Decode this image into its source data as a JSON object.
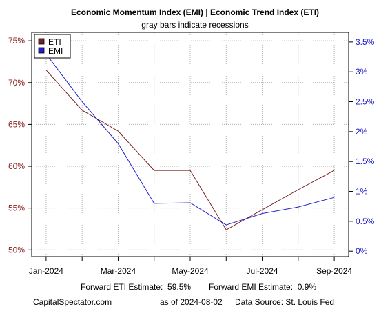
{
  "chart_data": {
    "type": "line",
    "title": "Economic Momentum Index (EMI) | Economic Trend Index (ETI)",
    "subtitle": "gray bars indicate recessions",
    "x": [
      "2024-01",
      "2024-02",
      "2024-03",
      "2024-04",
      "2024-05",
      "2024-06",
      "2024-07",
      "2024-08",
      "2024-09"
    ],
    "x_tick_labels": [
      "Jan-2024",
      "Mar-2024",
      "May-2024",
      "Jul-2024",
      "Sep-2024"
    ],
    "x_tick_index": [
      0,
      2,
      4,
      6,
      8
    ],
    "xlim_index": [
      -0.4,
      8.4
    ],
    "left_axis": {
      "ticks": [
        50,
        55,
        60,
        65,
        70,
        75
      ],
      "labels": [
        "50%",
        "55%",
        "60%",
        "65%",
        "70%",
        "75%"
      ],
      "ylim": [
        49.2,
        76
      ],
      "color": "#8b2020"
    },
    "right_axis": {
      "ticks": [
        0,
        0.5,
        1,
        1.5,
        2,
        2.5,
        3,
        3.5
      ],
      "labels": [
        "0%",
        "0.5%",
        "1%",
        "1.5%",
        "2%",
        "2.5%",
        "3%",
        "3.5%"
      ],
      "ylim": [
        -0.09,
        3.66
      ],
      "color": "#1a1acc"
    },
    "series": [
      {
        "name": "ETI",
        "axis": "left",
        "color": "#7a1e1e",
        "values": [
          71.5,
          66.7,
          64.2,
          59.5,
          59.5,
          52.4,
          54.8,
          57.2,
          59.5
        ]
      },
      {
        "name": "EMI",
        "axis": "right",
        "color": "#2020cc",
        "values": [
          3.3,
          2.5,
          1.8,
          0.8,
          0.81,
          0.44,
          0.63,
          0.74,
          0.9
        ]
      }
    ],
    "legend": {
      "placement": "top-left"
    },
    "grid": true
  },
  "footer": {
    "forward_eti": "Forward ETI Estimate:  59.5%",
    "forward_emi": "Forward EMI Estimate:  0.9%",
    "source_site": "CapitalSpectator.com",
    "as_of": "as of 2024-08-02",
    "data_source": "Data Source: St. Louis Fed"
  }
}
